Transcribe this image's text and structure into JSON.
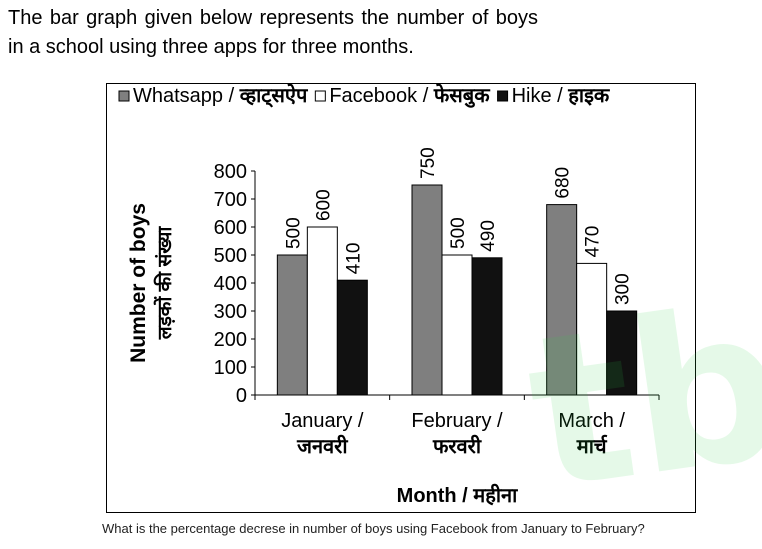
{
  "intro_text": "The bar graph given below represents the number of boys in a school using three apps for three months.",
  "question": "What is the percentage decrese in number of boys using Facebook from January to February?",
  "watermark": "tb",
  "chart_data": {
    "type": "bar",
    "categories": [
      {
        "line1": "January /",
        "line2": "जनवरी"
      },
      {
        "line1": "February /",
        "line2": "फरवरी"
      },
      {
        "line1": "March /",
        "line2": "मार्च"
      }
    ],
    "series": [
      {
        "name": "Whatsapp / ",
        "name_hi": "व्हाट्सऐप",
        "values": [
          500,
          750,
          680
        ],
        "color": "#7f7f7f"
      },
      {
        "name": "Facebook / ",
        "name_hi": "फेसबुक",
        "values": [
          600,
          500,
          470
        ],
        "color": "#ffffff"
      },
      {
        "name": "Hike / ",
        "name_hi": "हाइक",
        "values": [
          410,
          490,
          300
        ],
        "color": "#111111"
      }
    ],
    "ylim": [
      0,
      800
    ],
    "yticks": [
      0,
      100,
      200,
      300,
      400,
      500,
      600,
      700,
      800
    ],
    "ylabel": "Number of boys",
    "ylabel_hi": "लड़कों की संख्या",
    "xlabel": "Month / महीना",
    "legend_position": "top",
    "grid": false
  }
}
